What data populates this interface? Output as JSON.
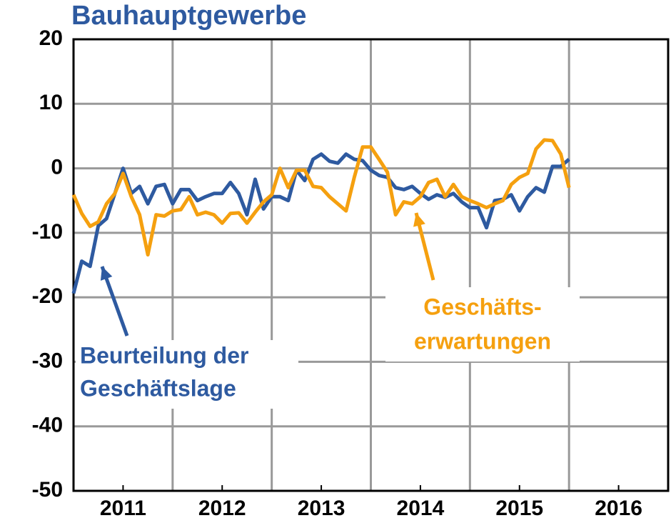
{
  "chart_data": {
    "type": "line",
    "title": "Bauhauptgewerbe",
    "x": [
      2011,
      2011.083,
      2011.167,
      2011.25,
      2011.333,
      2011.417,
      2011.5,
      2011.583,
      2011.667,
      2011.75,
      2011.833,
      2011.917,
      2012,
      2012.083,
      2012.167,
      2012.25,
      2012.333,
      2012.417,
      2012.5,
      2012.583,
      2012.667,
      2012.75,
      2012.833,
      2012.917,
      2013,
      2013.083,
      2013.167,
      2013.25,
      2013.333,
      2013.417,
      2013.5,
      2013.583,
      2013.667,
      2013.75,
      2013.833,
      2013.917,
      2014,
      2014.083,
      2014.167,
      2014.25,
      2014.333,
      2014.417,
      2014.5,
      2014.583,
      2014.667,
      2014.75,
      2014.833,
      2014.917,
      2015,
      2015.083,
      2015.167,
      2015.25,
      2015.333,
      2015.417,
      2015.5,
      2015.583,
      2015.667,
      2015.75,
      2015.833,
      2015.917,
      2016
    ],
    "series": [
      {
        "label_lines": [
          "Beurteilung der",
          "Geschäftslage"
        ],
        "color": "#2e5aa0",
        "values": [
          -19.4,
          -14.4,
          -15.2,
          -8.9,
          -7.8,
          -3.9,
          0,
          -3.9,
          -2.8,
          -5.5,
          -2.8,
          -2.5,
          -5.5,
          -3.3,
          -3.3,
          -5,
          -4.4,
          -3.9,
          -3.9,
          -2.2,
          -3.9,
          -7.2,
          -1.7,
          -6.3,
          -4.4,
          -4.4,
          -5,
          -0.3,
          -1.9,
          1.4,
          2.2,
          1.1,
          0.8,
          2.2,
          1.4,
          1.2,
          -0.3,
          -1.1,
          -1.4,
          -3,
          -3.3,
          -2.8,
          -3.9,
          -4.8,
          -4.1,
          -4.5,
          -3.9,
          -5.2,
          -6.1,
          -6.1,
          -9.2,
          -5,
          -4.8,
          -4.1,
          -6.6,
          -4.4,
          -3,
          -3.7,
          0.3,
          0.3,
          1.4
        ]
      },
      {
        "label_lines": [
          "Geschäfts-",
          "erwartungen"
        ],
        "color": "#f5a00f",
        "values": [
          -4.1,
          -7,
          -9,
          -8.3,
          -5.5,
          -3.9,
          -0.8,
          -4.4,
          -7.2,
          -13.4,
          -7.2,
          -7.4,
          -6.6,
          -6.4,
          -4.4,
          -7.2,
          -6.8,
          -7.2,
          -8.5,
          -7,
          -6.9,
          -8.5,
          -6.8,
          -5.2,
          -4.1,
          0,
          -3,
          -0.3,
          -0.3,
          -2.8,
          -3,
          -4.4,
          -5.5,
          -6.6,
          -1.4,
          3.3,
          3.3,
          1.4,
          -0.6,
          -7.2,
          -5.2,
          -5.5,
          -4.4,
          -2.2,
          -1.7,
          -4.4,
          -2.5,
          -4.4,
          -5,
          -5.5,
          -6.1,
          -5.5,
          -5,
          -2.5,
          -1.4,
          -0.8,
          3,
          4.4,
          4.3,
          2.2,
          -3
        ]
      }
    ],
    "xlim": [
      2011,
      2017
    ],
    "xticks": [
      {
        "value": 2011.5,
        "label": "2011"
      },
      {
        "value": 2012.5,
        "label": "2012"
      },
      {
        "value": 2013.5,
        "label": "2013"
      },
      {
        "value": 2014.5,
        "label": "2014"
      },
      {
        "value": 2015.5,
        "label": "2015"
      },
      {
        "value": 2016.5,
        "label": "2016"
      }
    ],
    "x_gridlines": [
      2012,
      2013,
      2014,
      2015,
      2016
    ],
    "ylim": [
      -50,
      20
    ],
    "yticks": [
      -50,
      -40,
      -30,
      -20,
      -10,
      0,
      10,
      20
    ],
    "grid": true
  }
}
